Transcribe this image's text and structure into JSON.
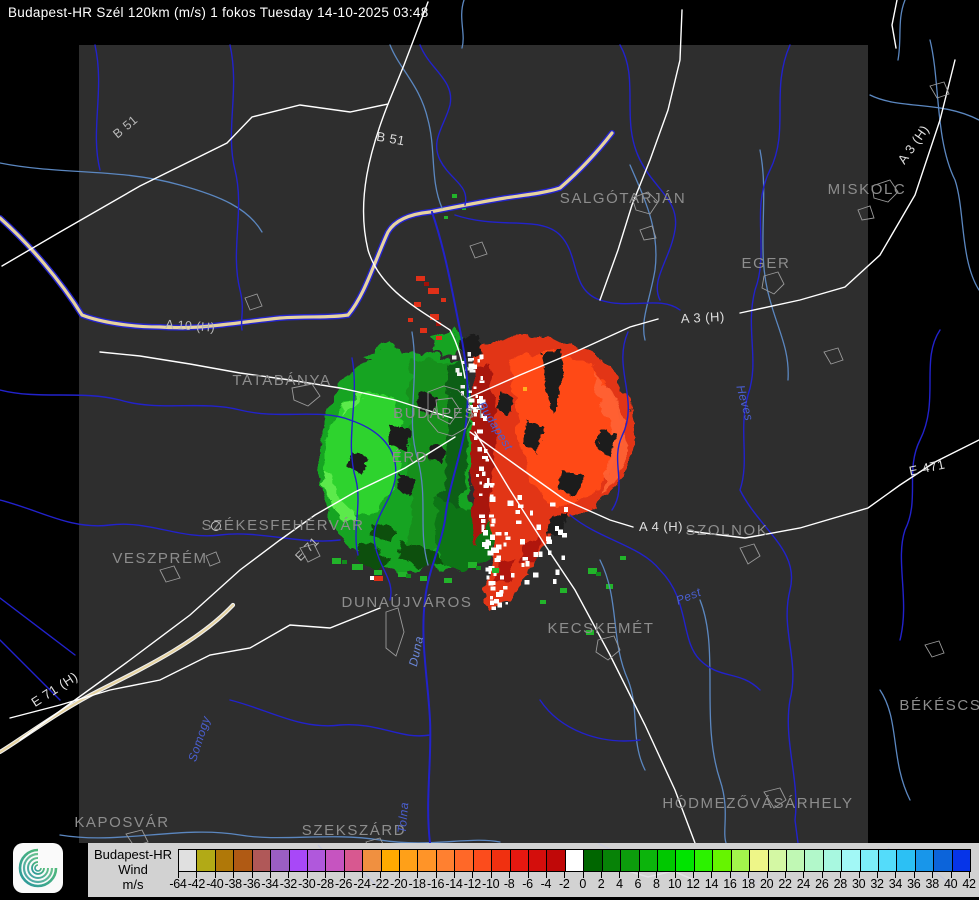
{
  "title": "Budapest-HR Szél 120km (m/s) 1 fokos Tuesday 14-10-2025 03:48",
  "map": {
    "cities": [
      "SALGÓTARJÁN",
      "MISKOLC",
      "EGER",
      "TATABÁNYA",
      "BUDAPEST",
      "ÉRD",
      "SZÉKESFEHÉRVÁR",
      "VESZPRÉM",
      "DUNAÚJVÁROS",
      "KECSKEMÉT",
      "SZOLNOK",
      "HÓDMEZŐVÁSÁRHELY",
      "BÉKÉSCSAB",
      "KAPOSVÁR",
      "SZEKSZÁRD"
    ],
    "roads": [
      "B 51",
      "B 51",
      "A 10 (H)",
      "A 3 (H)",
      "A 3 (H)",
      "A 4 (H)",
      "E 471",
      "E 71 (H)",
      "E 71"
    ],
    "regions": [
      "Budapest",
      "Heves",
      "Pest",
      "Somogy",
      "Tolna",
      "Duna"
    ]
  },
  "radar": {
    "toward_color": "#17a422",
    "away_color": "#e23414"
  },
  "legend": {
    "title_lines": [
      "Budapest-HR",
      "Wind",
      "m/s"
    ],
    "background": "#d2d2d2",
    "colors": [
      "#e0e0e0",
      "#b2aa16",
      "#b07808",
      "#b05a14",
      "#b05858",
      "#9a5ec4",
      "#a848f8",
      "#b058dc",
      "#c654c0",
      "#d85890",
      "#f09040",
      "#ffaa00",
      "#ffa018",
      "#ff9428",
      "#ff8030",
      "#ff6828",
      "#fc4c1c",
      "#f03010",
      "#e61810",
      "#d40e0c",
      "#c00808",
      "#ffffff",
      "#006600",
      "#078207",
      "#0c9c0c",
      "#0cb40c",
      "#00c800",
      "#00e400",
      "#2cf200",
      "#66f400",
      "#a2f44c",
      "#eef688",
      "#d4f8a4",
      "#c0f8b4",
      "#b2f8ca",
      "#a8f8e0",
      "#a2f8f6",
      "#7ceefa",
      "#54dcfa",
      "#2cc0f4",
      "#1896ea",
      "#0c64da",
      "#0634e8"
    ],
    "tick_labels": [
      "-64",
      "-42",
      "-40",
      "-38",
      "-36",
      "-34",
      "-32",
      "-30",
      "-28",
      "-26",
      "-24",
      "-22",
      "-20",
      "-18",
      "-16",
      "-14",
      "-12",
      "-10",
      "-8",
      "-6",
      "-4",
      "-2",
      "0",
      "2",
      "4",
      "6",
      "8",
      "10",
      "12",
      "14",
      "16",
      "18",
      "20",
      "22",
      "24",
      "26",
      "28",
      "30",
      "32",
      "34",
      "36",
      "38",
      "40",
      "42"
    ]
  }
}
